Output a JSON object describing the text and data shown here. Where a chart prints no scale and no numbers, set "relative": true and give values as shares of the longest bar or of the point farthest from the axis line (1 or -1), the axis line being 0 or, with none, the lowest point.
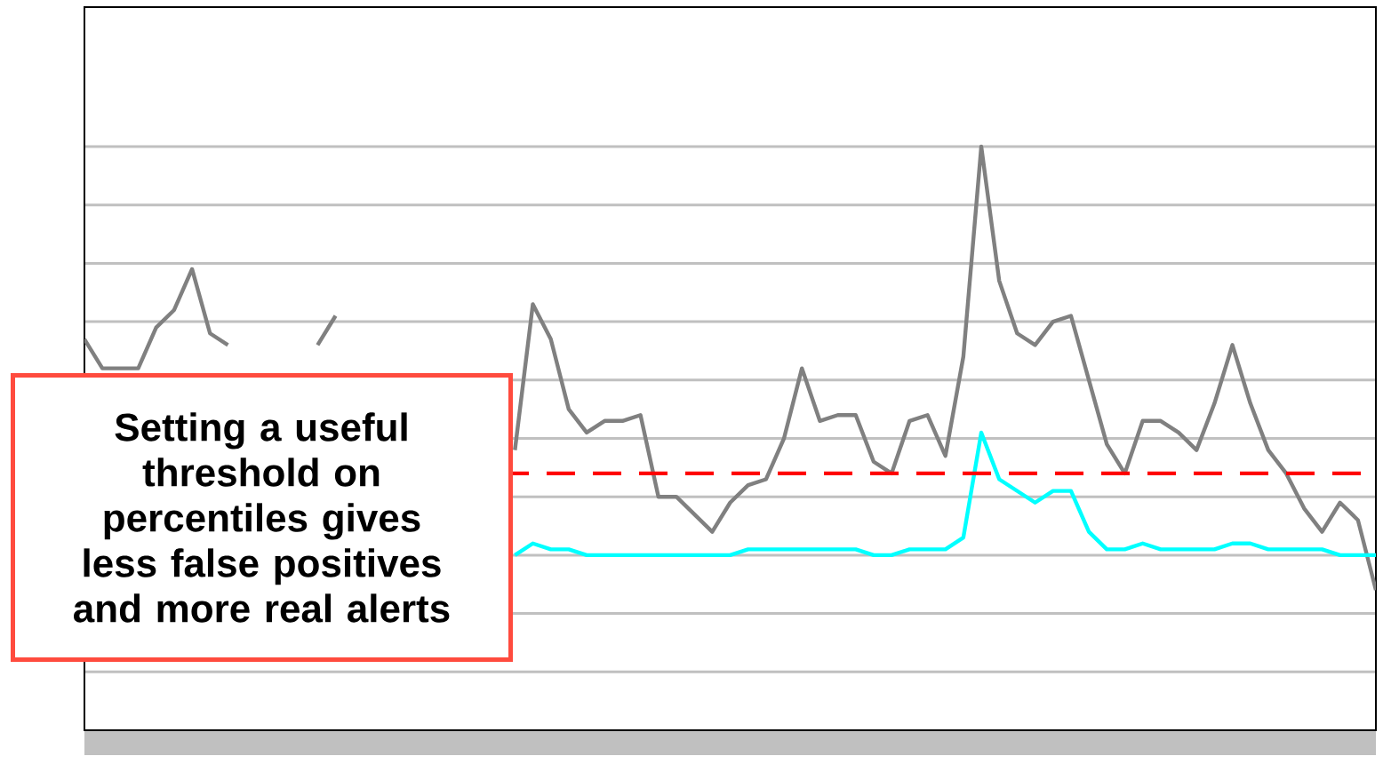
{
  "chart_data": {
    "type": "line",
    "relative": true,
    "grid": "y",
    "categories": [
      null,
      null,
      null,
      null,
      null,
      null,
      null,
      null,
      null,
      null,
      null,
      null,
      null,
      null,
      null,
      null,
      null,
      null,
      null,
      null,
      null,
      null,
      null,
      null,
      null,
      null,
      null,
      null,
      null,
      null,
      null,
      null,
      null,
      null,
      null,
      null,
      null,
      null,
      null,
      null,
      null,
      null,
      null,
      null,
      null,
      null,
      null,
      null,
      null,
      null,
      null,
      null,
      null,
      null,
      null,
      null,
      null,
      null,
      null,
      null,
      null,
      null,
      null,
      null,
      null,
      null,
      null,
      null,
      null,
      null,
      null,
      null,
      null
    ],
    "series": [
      {
        "color": "#808080",
        "values": [
          0.67,
          0.62,
          0.62,
          0.62,
          0.69,
          0.72,
          0.79,
          0.68,
          0.66,
          null,
          null,
          null,
          null,
          0.66,
          0.71,
          null,
          null,
          null,
          null,
          null,
          null,
          null,
          null,
          null,
          0.48,
          0.73,
          0.67,
          0.55,
          0.51,
          0.53,
          0.53,
          0.54,
          0.4,
          0.4,
          0.37,
          0.34,
          0.39,
          0.42,
          0.43,
          0.5,
          0.62,
          0.53,
          0.54,
          0.54,
          0.46,
          0.44,
          0.53,
          0.54,
          0.47,
          0.64,
          1,
          0.77,
          0.68,
          0.66,
          0.7,
          0.71,
          0.6,
          0.49,
          0.44,
          0.53,
          0.53,
          0.51,
          0.48,
          0.56,
          0.66,
          0.56,
          0.48,
          0.44,
          0.38,
          0.34,
          0.39,
          0.36,
          0.24
        ]
      },
      {
        "color": "#00ffff",
        "values": [
          null,
          null,
          null,
          null,
          null,
          null,
          null,
          null,
          null,
          null,
          null,
          null,
          null,
          null,
          null,
          null,
          null,
          null,
          null,
          null,
          null,
          null,
          null,
          null,
          0.3,
          0.32,
          0.31,
          0.31,
          0.3,
          0.3,
          0.3,
          0.3,
          0.3,
          0.3,
          0.3,
          0.3,
          0.3,
          0.31,
          0.31,
          0.31,
          0.31,
          0.31,
          0.31,
          0.31,
          0.3,
          0.3,
          0.31,
          0.31,
          0.31,
          0.33,
          0.51,
          0.43,
          0.41,
          0.39,
          0.41,
          0.41,
          0.34,
          0.31,
          0.31,
          0.32,
          0.31,
          0.31,
          0.31,
          0.31,
          0.32,
          0.32,
          0.31,
          0.31,
          0.31,
          0.31,
          0.3,
          0.3,
          0.3
        ]
      }
    ],
    "ref_lines": [
      {
        "axis": "y",
        "value": 0.44,
        "color": "#ff0000",
        "line_style": "dashed"
      }
    ],
    "annotations": [
      "Setting a useful threshold on percentiles gives less false positives and more real alerts"
    ]
  }
}
